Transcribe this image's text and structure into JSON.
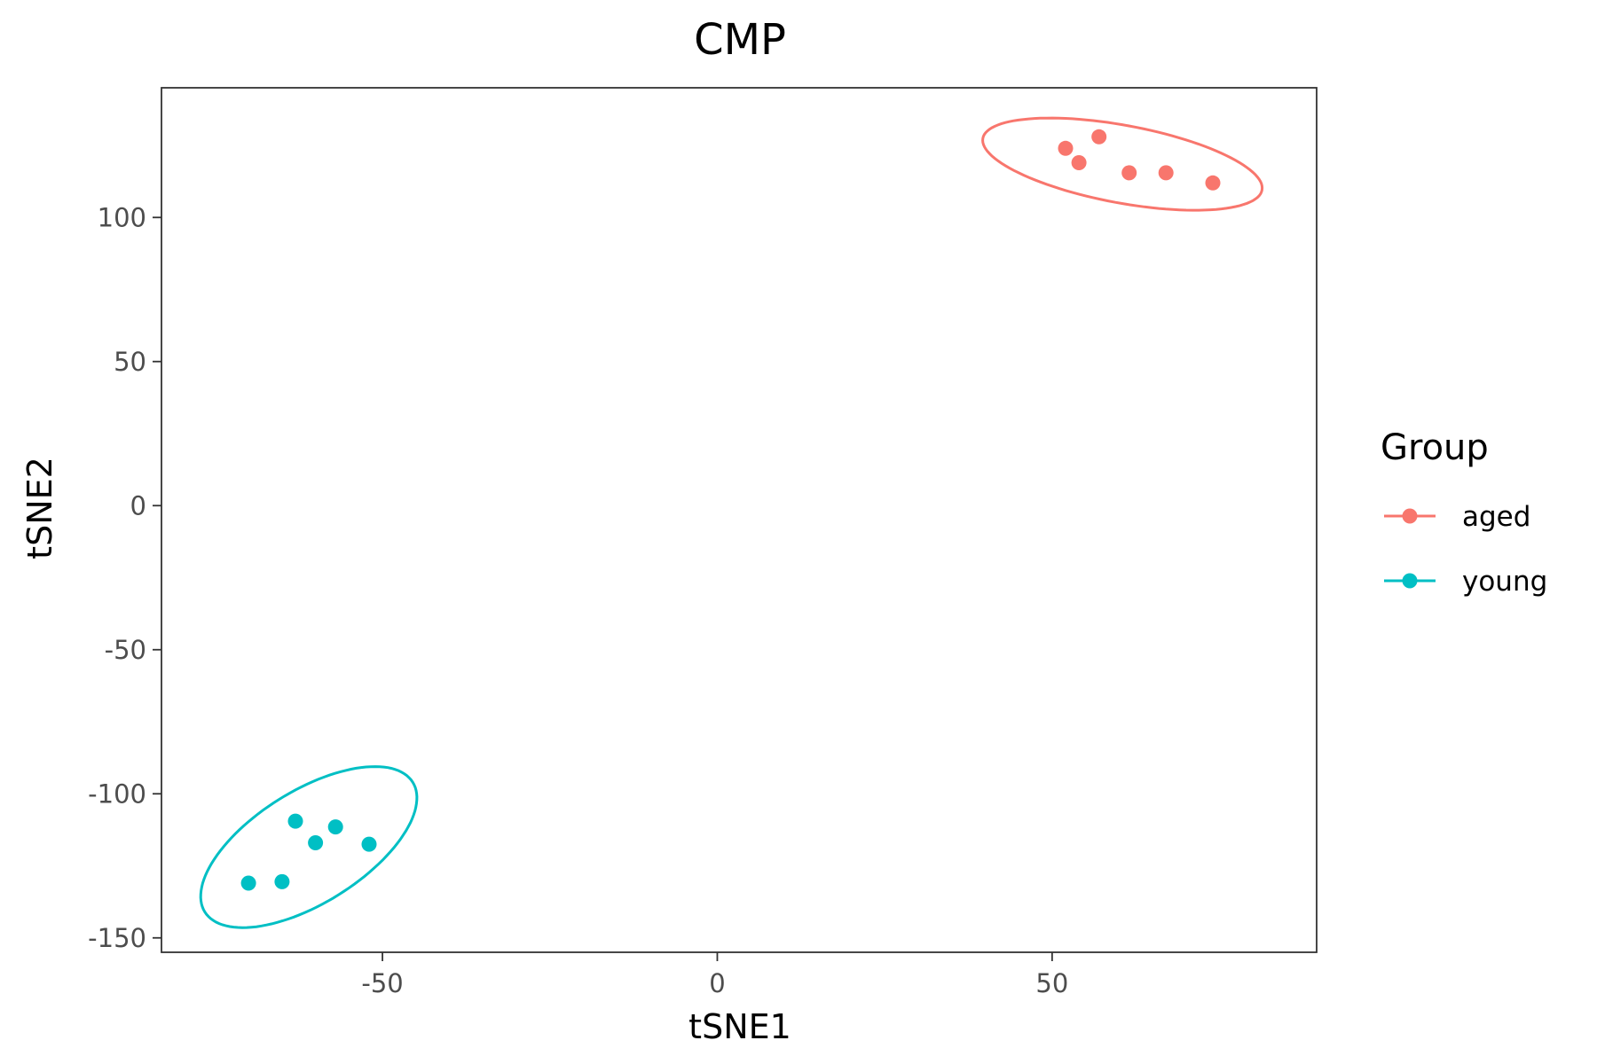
{
  "chart_data": {
    "type": "scatter",
    "title": "CMP",
    "xlabel": "tSNE1",
    "ylabel": "tSNE2",
    "xlim": [
      -83,
      89.5
    ],
    "ylim": [
      -155,
      145
    ],
    "x_ticks": [
      -50,
      0,
      50
    ],
    "y_ticks": [
      -150,
      -100,
      -50,
      0,
      50,
      100
    ],
    "grid": false,
    "legend": {
      "title": "Group",
      "position": "right"
    },
    "series": [
      {
        "name": "aged",
        "color": "#F8766D",
        "points": [
          {
            "x": 52,
            "y": 124
          },
          {
            "x": 54,
            "y": 119
          },
          {
            "x": 57,
            "y": 128
          },
          {
            "x": 61.5,
            "y": 115.5
          },
          {
            "x": 67,
            "y": 115.5
          },
          {
            "x": 74,
            "y": 112
          }
        ],
        "ellipse": {
          "cx": 60.5,
          "cy": 118.5,
          "rx": 21.2,
          "ry": 5.8,
          "angle_deg": -10.5
        }
      },
      {
        "name": "young",
        "color": "#00BFC4",
        "points": [
          {
            "x": -70,
            "y": -131
          },
          {
            "x": -65,
            "y": -130.5
          },
          {
            "x": -63,
            "y": -109.5
          },
          {
            "x": -60,
            "y": -117
          },
          {
            "x": -57,
            "y": -111.5
          },
          {
            "x": -52,
            "y": -117.5
          }
        ],
        "ellipse": {
          "cx": -61,
          "cy": -118.5,
          "rx": 18.3,
          "ry": 8.4,
          "angle_deg": 32
        }
      }
    ]
  }
}
